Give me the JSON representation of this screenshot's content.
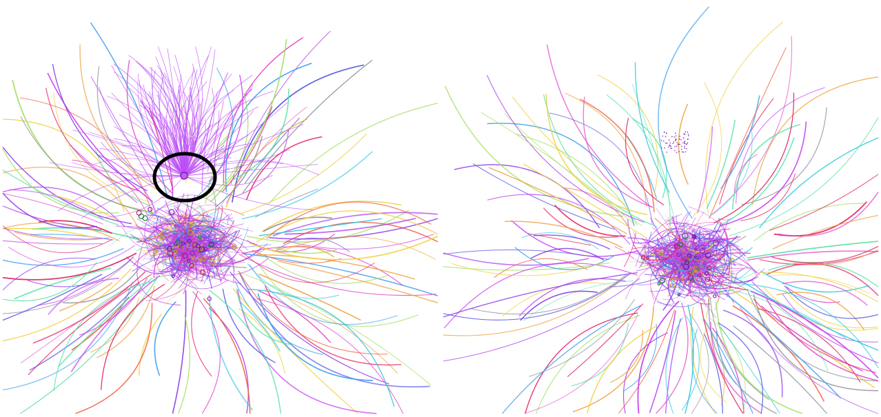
{
  "figure": {
    "panels": [
      {
        "id": "left",
        "description_name": "network-graph-with-highlighted-hub",
        "has_highlight": true,
        "highlight_color": "#000000",
        "dominant_color": "#b040f0"
      },
      {
        "id": "right",
        "description_name": "network-graph-without-hub",
        "has_highlight": false,
        "dominant_color": "#b040f0"
      }
    ],
    "palette": [
      "#b040f0",
      "#c83cf0",
      "#e040c8",
      "#8a38e8",
      "#5050e0",
      "#30c8e0",
      "#50e0a0",
      "#a0e060",
      "#f0d040",
      "#f0a040",
      "#f06040",
      "#e02060",
      "#40a0f0",
      "#9090a0"
    ]
  }
}
